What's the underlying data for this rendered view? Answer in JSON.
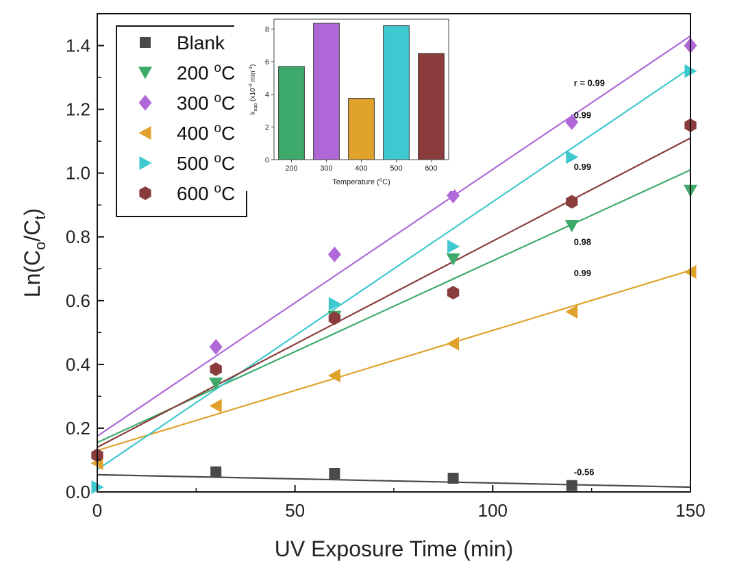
{
  "chart_data": [
    {
      "type": "scatter",
      "title": "",
      "xlabel": "UV Exposure Time (min)",
      "ylabel_main": "Ln(C",
      "ylabel_sub1": "o",
      "ylabel_mid": "/C",
      "ylabel_sub2": "t",
      "ylabel_end": ")",
      "xlim": [
        0,
        150
      ],
      "ylim": [
        0,
        1.5
      ],
      "xticks": [
        "0",
        "50",
        "100",
        "150"
      ],
      "yticks": [
        "0.0",
        "0.2",
        "0.4",
        "0.6",
        "0.8",
        "1.0",
        "1.2",
        "1.4"
      ],
      "legend_position": "top-left",
      "series": [
        {
          "name": "Blank",
          "name_main": "Blank",
          "name_sup": "",
          "name_end": "",
          "marker": "square",
          "color": "#4a4a4a",
          "x": [
            30,
            60,
            90,
            120
          ],
          "y": [
            0.063,
            0.058,
            0.043,
            0.02
          ],
          "fit": [
            0.054,
            0.015
          ],
          "r_label": "-0.56"
        },
        {
          "name": "200 °C",
          "name_main": "200 ",
          "name_sup": "o",
          "name_end": "C",
          "marker": "triangle-down",
          "color": "#3daa6b",
          "x": [
            30,
            60,
            90,
            120,
            150
          ],
          "y": [
            0.34,
            0.55,
            0.73,
            0.835,
            0.945
          ],
          "fit": [
            0.155,
            1.01
          ],
          "r_label": "0.98"
        },
        {
          "name": "300 °C",
          "name_main": "300 ",
          "name_sup": "o",
          "name_end": "C",
          "marker": "diamond",
          "color": "#b068d8",
          "x": [
            30,
            60,
            90,
            120,
            150
          ],
          "y": [
            0.455,
            0.745,
            0.93,
            1.16,
            1.4
          ],
          "fit": [
            0.175,
            1.43
          ],
          "r_label": "r = 0.99"
        },
        {
          "name": "400 °C",
          "name_main": "400 ",
          "name_sup": "o",
          "name_end": "C",
          "marker": "triangle-left",
          "color": "#e0a22a",
          "x": [
            0,
            30,
            60,
            90,
            120,
            150
          ],
          "y": [
            0.09,
            0.27,
            0.365,
            0.465,
            0.565,
            0.69
          ],
          "fit": [
            0.13,
            0.695
          ],
          "r_label": "0.99"
        },
        {
          "name": "500 °C",
          "name_main": "500 ",
          "name_sup": "o",
          "name_end": "C",
          "marker": "triangle-right",
          "color": "#3ec8d0",
          "x": [
            0,
            60,
            90,
            120,
            150
          ],
          "y": [
            0.015,
            0.59,
            0.77,
            1.05,
            1.32
          ],
          "fit": [
            0.07,
            1.33
          ],
          "r_label": "0.99"
        },
        {
          "name": "600 °C",
          "name_main": "600 ",
          "name_sup": "o",
          "name_end": "C",
          "marker": "hexagon",
          "color": "#8a3c3c",
          "x": [
            0,
            30,
            60,
            90,
            120,
            150
          ],
          "y": [
            0.115,
            0.385,
            0.545,
            0.625,
            0.91,
            1.15
          ],
          "fit": [
            0.14,
            1.11
          ],
          "r_label": "0.99"
        }
      ]
    },
    {
      "type": "bar",
      "title": "",
      "xlabel_main": "Temperature (",
      "xlabel_sup": "o",
      "xlabel_end": "C)",
      "ylabel_k": "k",
      "ylabel_ksub": "app",
      "ylabel_unit1": " (x10",
      "ylabel_exp1": "-3",
      "ylabel_unit2": " min",
      "ylabel_exp2": "-1",
      "ylabel_unit3": ")",
      "ylim": [
        0,
        8.6
      ],
      "yticks": [
        "0",
        "2",
        "4",
        "6",
        "8"
      ],
      "categories": [
        "200",
        "300",
        "400",
        "500",
        "600"
      ],
      "values": [
        5.7,
        8.35,
        3.75,
        8.2,
        6.5
      ],
      "colors": [
        "#3daa6b",
        "#b068d8",
        "#e0a22a",
        "#3ec8d0",
        "#8a3c3c"
      ]
    }
  ]
}
